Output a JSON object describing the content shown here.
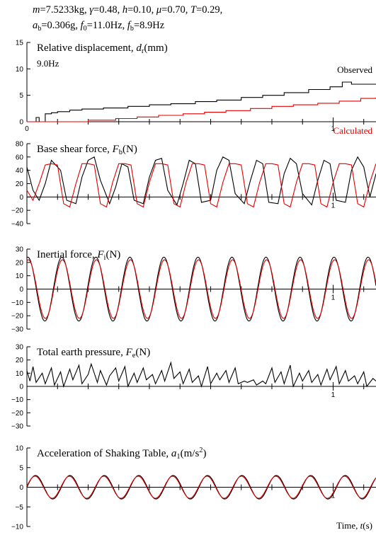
{
  "header": {
    "line1": [
      {
        "t": "m",
        "i": true
      },
      {
        "t": "=7.5233kg, "
      },
      {
        "t": "γ",
        "i": true
      },
      {
        "t": "=0.48, "
      },
      {
        "t": "h",
        "i": true
      },
      {
        "t": "=0.10, "
      },
      {
        "t": "μ",
        "i": true
      },
      {
        "t": "=0.70, "
      },
      {
        "t": "T",
        "i": true
      },
      {
        "t": "=0.29,"
      }
    ],
    "line2": [
      {
        "t": "a",
        "i": true
      },
      {
        "t": "b",
        "sub": true
      },
      {
        "t": "=0.306g, "
      },
      {
        "t": "f",
        "i": true
      },
      {
        "t": "0",
        "sub": true
      },
      {
        "t": "=11.0Hz, "
      },
      {
        "t": "f",
        "i": true
      },
      {
        "t": "b",
        "sub": true
      },
      {
        "t": "=8.9Hz"
      }
    ]
  },
  "colors": {
    "observed": "#000000",
    "calculated": "#e00000",
    "axis": "#000000"
  },
  "chart_data": [
    {
      "type": "line",
      "title": [
        {
          "t": "Relative displacement, "
        },
        {
          "t": "d",
          "i": true
        },
        {
          "t": "r",
          "sub": true
        },
        {
          "t": "(mm)"
        }
      ],
      "annotation": "9.0Hz",
      "yticks": [
        0,
        5,
        10,
        15
      ],
      "ylim": [
        0,
        15
      ],
      "xticks": [
        {
          "v": 0,
          "label": "0"
        },
        {
          "v": 1,
          "label": "1"
        }
      ],
      "xlim": [
        0,
        1.14
      ],
      "series": [
        {
          "name": "Observed",
          "color": "#000000",
          "x": [
            0,
            0.02,
            0.03,
            0.04,
            0.06,
            0.08,
            0.1,
            0.14,
            0.18,
            0.25,
            0.33,
            0.4,
            0.47,
            0.55,
            0.62,
            0.7,
            0.77,
            0.84,
            0.92,
            0.99,
            1.03,
            1.06,
            1.14
          ],
          "y": [
            0,
            0,
            0.8,
            0,
            1.5,
            1.7,
            1.9,
            2.2,
            2.4,
            2.6,
            2.9,
            3.2,
            3.4,
            3.8,
            4.1,
            4.6,
            5.0,
            5.5,
            6.1,
            6.6,
            7.5,
            7.1,
            7.1
          ],
          "step": true
        },
        {
          "name": "Calculated",
          "color": "#e00000",
          "x": [
            0,
            0.05,
            0.13,
            0.2,
            0.29,
            0.36,
            0.43,
            0.51,
            0.58,
            0.65,
            0.73,
            0.8,
            0.87,
            0.95,
            1.02,
            1.09,
            1.14
          ],
          "y": [
            0,
            0,
            0,
            0.3,
            0.6,
            0.9,
            1.2,
            1.5,
            1.8,
            2.1,
            2.5,
            2.9,
            3.2,
            3.5,
            3.9,
            4.4,
            4.6
          ],
          "step": true
        }
      ]
    },
    {
      "type": "line",
      "title": [
        {
          "t": "Base shear force, "
        },
        {
          "t": "F",
          "i": true
        },
        {
          "t": "b",
          "sub": true
        },
        {
          "t": "(N)"
        }
      ],
      "yticks": [
        -40,
        -20,
        0,
        20,
        40,
        60,
        80
      ],
      "ylim": [
        -40,
        80
      ],
      "xticks": [
        {
          "v": 1,
          "label": "1"
        }
      ],
      "xlim": [
        0,
        1.14
      ],
      "series": [
        {
          "name": "Observed",
          "color": "#000000",
          "x": [
            0,
            0.02,
            0.04,
            0.06,
            0.08,
            0.11,
            0.13,
            0.16,
            0.18,
            0.2,
            0.22,
            0.24,
            0.27,
            0.29,
            0.31,
            0.33,
            0.35,
            0.38,
            0.4,
            0.42,
            0.44,
            0.46,
            0.49,
            0.51,
            0.53,
            0.55,
            0.57,
            0.6,
            0.62,
            0.64,
            0.66,
            0.68,
            0.71,
            0.73,
            0.75,
            0.77,
            0.79,
            0.82,
            0.84,
            0.86,
            0.88,
            0.9,
            0.93,
            0.95,
            0.97,
            0.99,
            1.01,
            1.04,
            1.06,
            1.08,
            1.1,
            1.12,
            1.14
          ],
          "y": [
            45,
            10,
            -5,
            20,
            55,
            40,
            -5,
            -10,
            30,
            55,
            60,
            25,
            -10,
            15,
            50,
            45,
            -5,
            -10,
            30,
            55,
            58,
            10,
            -12,
            20,
            55,
            50,
            -8,
            -5,
            40,
            60,
            55,
            5,
            -10,
            25,
            55,
            50,
            -8,
            -10,
            35,
            58,
            50,
            5,
            -12,
            25,
            55,
            50,
            -5,
            -8,
            40,
            60,
            45,
            0,
            35
          ]
        },
        {
          "name": "Calculated",
          "color": "#e00000",
          "x": [
            0,
            0.02,
            0.04,
            0.06,
            0.08,
            0.1,
            0.12,
            0.14,
            0.16,
            0.18,
            0.2,
            0.22,
            0.24,
            0.26,
            0.28,
            0.3,
            0.32,
            0.34,
            0.36,
            0.38,
            0.4,
            0.42,
            0.44,
            0.46,
            0.48,
            0.5,
            0.52,
            0.54,
            0.56,
            0.58,
            0.6,
            0.62,
            0.64,
            0.66,
            0.68,
            0.7,
            0.72,
            0.74,
            0.76,
            0.78,
            0.8,
            0.82,
            0.84,
            0.86,
            0.88,
            0.9,
            0.92,
            0.94,
            0.96,
            0.98,
            1.0,
            1.02,
            1.04,
            1.06,
            1.08,
            1.1,
            1.12,
            1.14
          ],
          "y": [
            10,
            -5,
            20,
            48,
            50,
            48,
            -10,
            -15,
            20,
            50,
            50,
            48,
            -10,
            -15,
            22,
            50,
            50,
            48,
            -10,
            -15,
            22,
            50,
            50,
            48,
            -10,
            -15,
            22,
            50,
            50,
            48,
            -10,
            -15,
            22,
            50,
            50,
            48,
            -10,
            -15,
            22,
            50,
            50,
            48,
            -10,
            -15,
            22,
            50,
            50,
            48,
            -10,
            -15,
            22,
            50,
            50,
            48,
            -10,
            -15,
            22,
            50
          ]
        }
      ]
    },
    {
      "type": "line",
      "title": [
        {
          "t": "Inertial force, "
        },
        {
          "t": "F",
          "i": true
        },
        {
          "t": "i",
          "sub": true
        },
        {
          "t": "(N)"
        }
      ],
      "yticks": [
        -30,
        -20,
        -10,
        0,
        10,
        20,
        30
      ],
      "ylim": [
        -30,
        30
      ],
      "xticks": [
        {
          "v": 1,
          "label": "1"
        }
      ],
      "xlim": [
        0,
        1.14
      ],
      "series": [
        {
          "name": "Observed",
          "color": "#000000",
          "sine": {
            "amp": 24,
            "freq": 9.0,
            "phase": 1.4,
            "x0": 0,
            "x1": 1.14
          }
        },
        {
          "name": "Calculated",
          "color": "#e00000",
          "sine": {
            "amp": 22,
            "freq": 9.0,
            "phase": 1.3,
            "x0": 0,
            "x1": 1.14
          }
        }
      ]
    },
    {
      "type": "line",
      "title": [
        {
          "t": "Total earth pressure, "
        },
        {
          "t": "F",
          "i": true
        },
        {
          "t": "e",
          "sub": true
        },
        {
          "t": "(N)"
        }
      ],
      "yticks": [
        -30,
        -20,
        -10,
        0,
        10,
        20,
        30
      ],
      "ylim": [
        -30,
        30
      ],
      "xticks": [
        {
          "v": 1,
          "label": "1"
        }
      ],
      "xlim": [
        0,
        1.14
      ],
      "series": [
        {
          "name": "Observed",
          "color": "#000000",
          "x": [
            0,
            0.01,
            0.02,
            0.03,
            0.05,
            0.06,
            0.08,
            0.09,
            0.11,
            0.12,
            0.14,
            0.15,
            0.17,
            0.18,
            0.2,
            0.21,
            0.23,
            0.24,
            0.26,
            0.27,
            0.29,
            0.3,
            0.32,
            0.33,
            0.35,
            0.36,
            0.38,
            0.39,
            0.41,
            0.42,
            0.44,
            0.45,
            0.47,
            0.48,
            0.5,
            0.51,
            0.53,
            0.54,
            0.56,
            0.57,
            0.59,
            0.6,
            0.62,
            0.63,
            0.65,
            0.66,
            0.68,
            0.69,
            0.71,
            0.72,
            0.74,
            0.75,
            0.77,
            0.78,
            0.8,
            0.81,
            0.83,
            0.84,
            0.86,
            0.87,
            0.89,
            0.9,
            0.92,
            0.93,
            0.95,
            0.96,
            0.98,
            0.99,
            1.01,
            1.02,
            1.04,
            1.05,
            1.07,
            1.08,
            1.1,
            1.11,
            1.13,
            1.14
          ],
          "y": [
            12,
            4,
            15,
            3,
            10,
            2,
            14,
            1,
            11,
            0,
            13,
            5,
            16,
            2,
            9,
            17,
            3,
            12,
            1,
            8,
            14,
            4,
            15,
            0,
            10,
            3,
            14,
            5,
            9,
            2,
            12,
            4,
            18,
            6,
            11,
            2,
            13,
            3,
            8,
            0,
            15,
            2,
            10,
            5,
            12,
            3,
            14,
            2,
            4,
            3,
            5,
            1,
            4,
            2,
            14,
            3,
            11,
            2,
            16,
            0,
            10,
            4,
            12,
            3,
            9,
            1,
            13,
            5,
            15,
            2,
            12,
            4,
            8,
            2,
            11,
            0,
            6,
            4
          ]
        }
      ]
    },
    {
      "type": "line",
      "title": [
        {
          "t": "Acceleration of Shaking Table, "
        },
        {
          "t": "a",
          "i": true
        },
        {
          "t": "1",
          "sub": true
        },
        {
          "t": "(m/s"
        },
        {
          "t": "2",
          "sup": true
        },
        {
          "t": ")"
        }
      ],
      "yticks": [
        -10,
        -5,
        0,
        5,
        10
      ],
      "ylim": [
        -10,
        10
      ],
      "xticks": [
        {
          "v": 1,
          "label": "1"
        }
      ],
      "xlim": [
        0,
        1.14
      ],
      "xlabel": [
        {
          "t": "Time, "
        },
        {
          "t": "t",
          "i": true
        },
        {
          "t": "(s)"
        }
      ],
      "series": [
        {
          "name": "Observed",
          "color": "#000000",
          "sine": {
            "amp": 3.0,
            "freq": 8.9,
            "phase": 0.0,
            "x0": 0,
            "x1": 1.14
          }
        },
        {
          "name": "Calculated",
          "color": "#e00000",
          "sine": {
            "amp": 2.8,
            "freq": 8.9,
            "phase": 0.1,
            "x0": 0,
            "x1": 1.14
          }
        }
      ]
    }
  ]
}
